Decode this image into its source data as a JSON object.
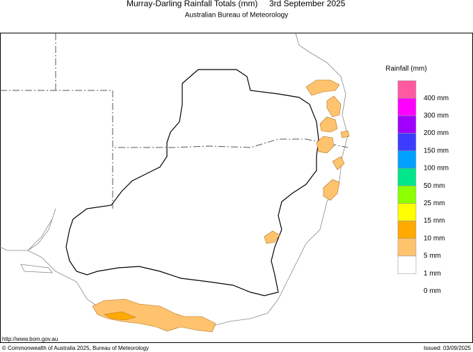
{
  "header": {
    "title": "Murray-Darling Rainfall Totals (mm)",
    "date": "3rd September 2025",
    "subtitle": "Australian Bureau of Meteorology"
  },
  "legend": {
    "title": "Rainfall (mm)",
    "items": [
      {
        "color": "#ff5aa0",
        "label": "400 mm"
      },
      {
        "color": "#ff00ff",
        "label": "300 mm"
      },
      {
        "color": "#a000ff",
        "label": "200 mm"
      },
      {
        "color": "#3c3cff",
        "label": "150 mm"
      },
      {
        "color": "#00a0ff",
        "label": "100 mm"
      },
      {
        "color": "#00e68c",
        "label": "50 mm"
      },
      {
        "color": "#8cff00",
        "label": "25 mm"
      },
      {
        "color": "#ffff00",
        "label": "15 mm"
      },
      {
        "color": "#ffaa00",
        "label": "10 mm"
      },
      {
        "color": "#ffc36e",
        "label": "5 mm"
      },
      {
        "color": "#ffffff",
        "label": "1 mm"
      },
      {
        "label": "0 mm"
      }
    ]
  },
  "footer": {
    "url": "http://www.bom.gov.au",
    "copyright": "© Commonwealth of Australia 2025, Bureau of Meteorology",
    "issued": "Issued: 03/09/2025"
  }
}
